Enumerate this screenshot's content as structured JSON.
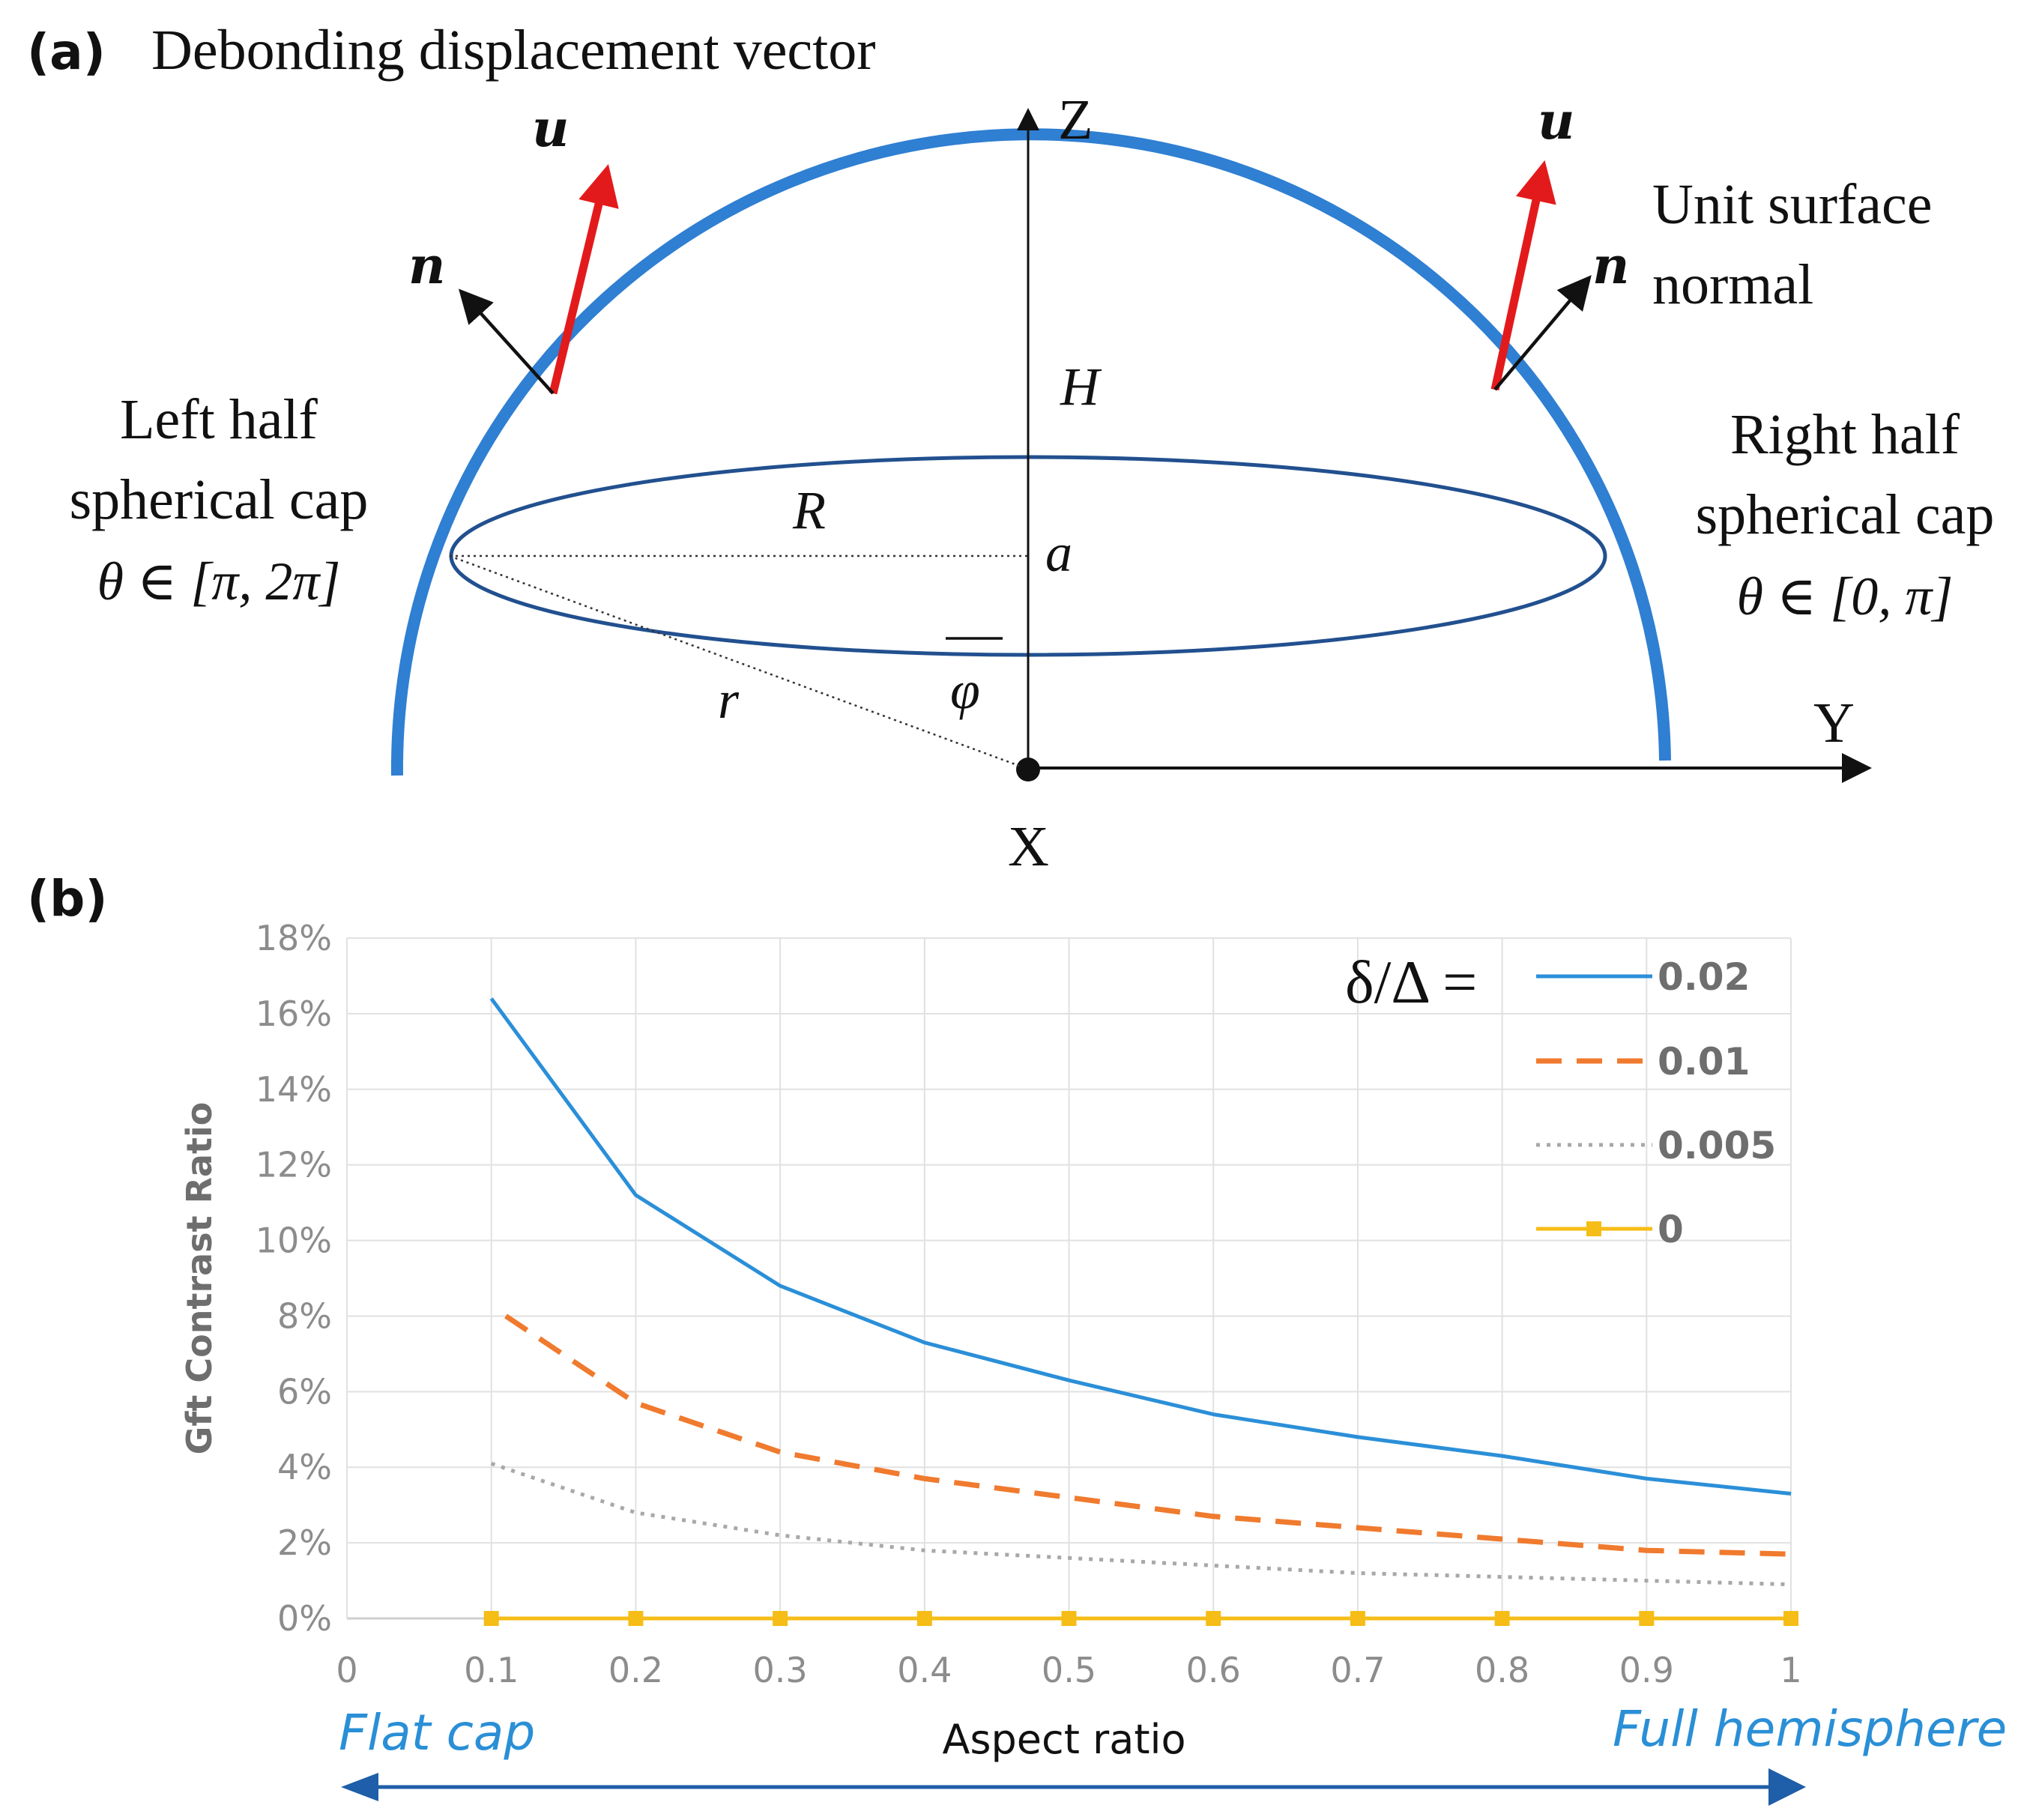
{
  "panel_a": {
    "label": "(a)",
    "title": "Debonding displacement vector",
    "axis_z": "Z",
    "axis_y": "Y",
    "axis_x": "X",
    "vec_u_left": "u",
    "vec_n_left": "n",
    "vec_u_right": "u",
    "vec_n_right": "n",
    "normal_line1": "Unit surface",
    "normal_line2": "normal",
    "left_line1": "Left half",
    "left_line2": "spherical cap",
    "left_line3": "θ ∈ [π, 2π]",
    "right_line1": "Right half",
    "right_line2": "spherical cap",
    "right_line3": "θ ∈ [0, π]",
    "sym_H": "H",
    "sym_R": "R",
    "sym_a": "a",
    "sym_r": "r",
    "sym_phi": "φ",
    "colors": {
      "cap": "#2f7fd2",
      "u_vector": "#e31a1c",
      "n_vector": "#111111",
      "ellipse": "#22508f"
    }
  },
  "panel_b": {
    "label": "(b)",
    "flat_cap": "Flat cap",
    "full_hemisphere": "Full hemisphere",
    "legend_title": "δ/Δ ="
  },
  "chart_data": {
    "type": "line",
    "title": "",
    "xlabel": "Aspect ratio",
    "ylabel": "Gft Contrast Ratio",
    "xlim": [
      0,
      1
    ],
    "ylim": [
      0,
      18
    ],
    "x_ticks": [
      "0",
      "0.1",
      "0.2",
      "0.3",
      "0.4",
      "0.5",
      "0.6",
      "0.7",
      "0.8",
      "0.9",
      "1"
    ],
    "y_ticks": [
      "0%",
      "2%",
      "4%",
      "6%",
      "8%",
      "10%",
      "12%",
      "14%",
      "16%",
      "18%"
    ],
    "y_tick_values": [
      0,
      2,
      4,
      6,
      8,
      10,
      12,
      14,
      16,
      18
    ],
    "grid": true,
    "legend_position": "top-right",
    "series": [
      {
        "name": "0.02",
        "color": "#2b8fd8",
        "style": "solid",
        "x": [
          0.1,
          0.2,
          0.3,
          0.4,
          0.5,
          0.6,
          0.7,
          0.8,
          0.9,
          1.0
        ],
        "values": [
          16.4,
          11.2,
          8.8,
          7.3,
          6.3,
          5.4,
          4.8,
          4.3,
          3.7,
          3.3
        ]
      },
      {
        "name": "0.01",
        "color": "#f07a2e",
        "style": "dashed",
        "x": [
          0.11,
          0.2,
          0.3,
          0.4,
          0.5,
          0.6,
          0.7,
          0.8,
          0.9,
          1.0
        ],
        "values": [
          8.0,
          5.7,
          4.4,
          3.7,
          3.2,
          2.7,
          2.4,
          2.1,
          1.8,
          1.7
        ]
      },
      {
        "name": "0.005",
        "color": "#a8a8a8",
        "style": "dotted",
        "x": [
          0.1,
          0.2,
          0.3,
          0.4,
          0.5,
          0.6,
          0.7,
          0.8,
          0.9,
          1.0
        ],
        "values": [
          4.1,
          2.8,
          2.2,
          1.8,
          1.6,
          1.4,
          1.2,
          1.1,
          1.0,
          0.9
        ]
      },
      {
        "name": "0",
        "color": "#f6bd16",
        "style": "solid-square",
        "x": [
          0.1,
          0.2,
          0.3,
          0.4,
          0.5,
          0.6,
          0.7,
          0.8,
          0.9,
          1.0
        ],
        "values": [
          0,
          0,
          0,
          0,
          0,
          0,
          0,
          0,
          0,
          0
        ]
      }
    ]
  }
}
